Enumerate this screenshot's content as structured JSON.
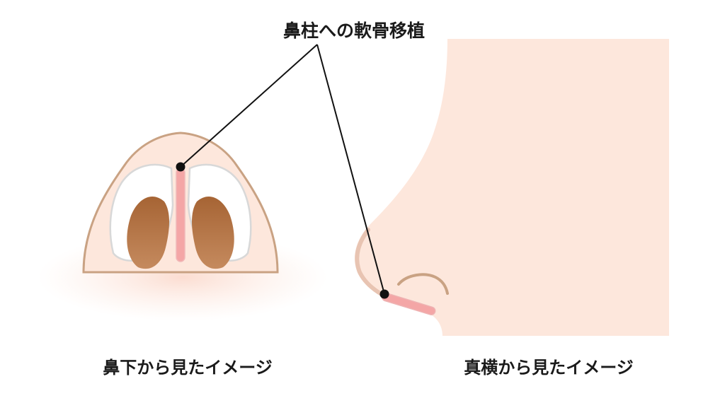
{
  "title": "鼻柱への軟骨移植",
  "captions": {
    "bottom_view": "鼻下から見たイメージ",
    "side_view": "真横から見たイメージ"
  },
  "colors": {
    "skin": "#fde7dc",
    "skin_outline": "#c9a283",
    "nostril": "#a06235",
    "cartilage_white": "#ffffff",
    "cartilage_outline": "#d8d8d8",
    "graft_pink": "#f4a6a6",
    "pointer": "#111111"
  }
}
